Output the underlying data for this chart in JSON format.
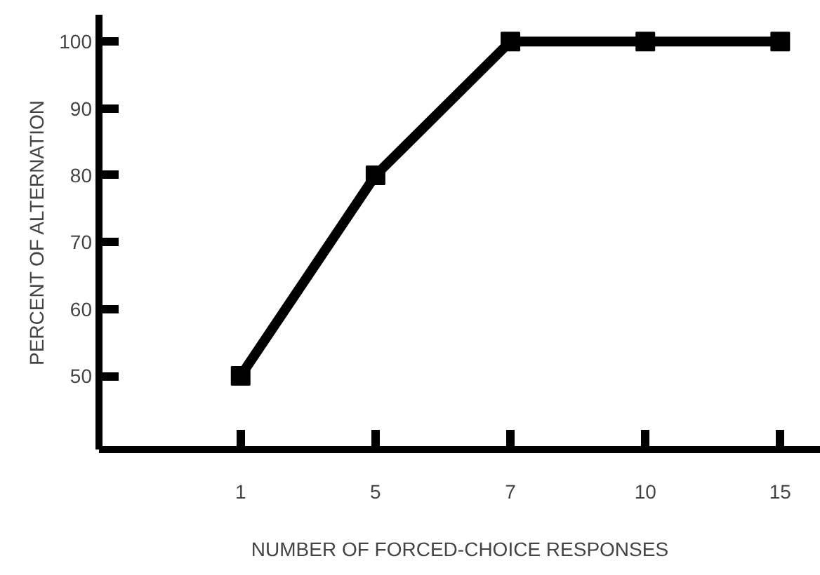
{
  "chart_data": {
    "type": "line",
    "xlabel": "NUMBER OF FORCED-CHOICE RESPONSES",
    "ylabel": "PERCENT OF ALTERNATION",
    "categories": [
      "1",
      "5",
      "7",
      "10",
      "15"
    ],
    "series": [
      {
        "color": "#000000",
        "values": [
          50,
          80,
          100,
          100,
          100
        ]
      }
    ],
    "ylim": [
      39,
      104
    ],
    "yticks": [
      50,
      60,
      70,
      80,
      90,
      100
    ],
    "grid": false,
    "marker": "square",
    "line_style": "solid"
  }
}
